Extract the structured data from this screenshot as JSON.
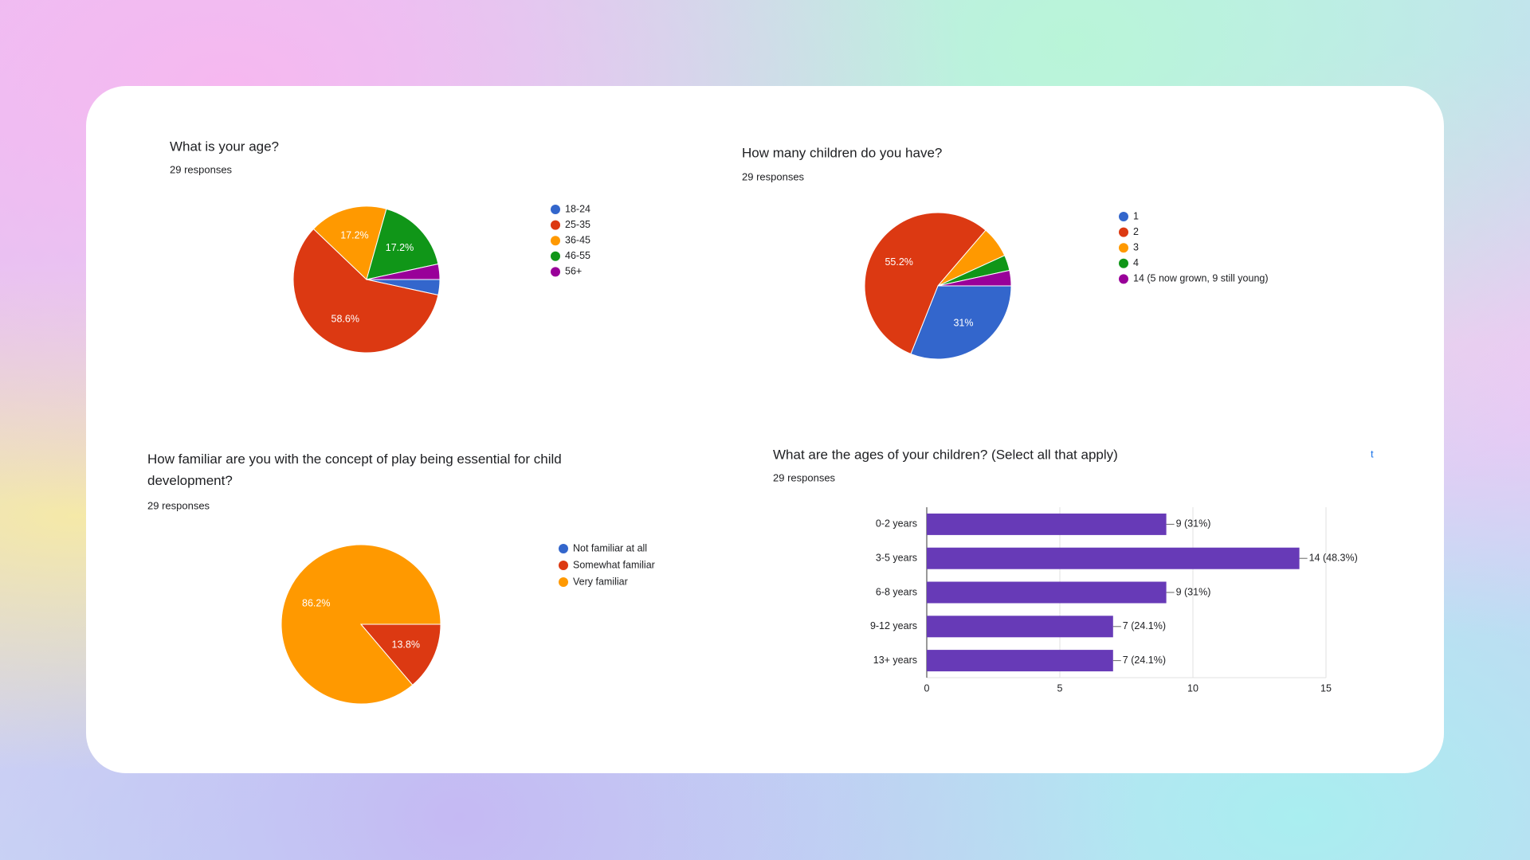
{
  "chart_data": [
    {
      "type": "pie",
      "title": "What is your age?",
      "subtitle": "29 responses",
      "categories": [
        "18-24",
        "25-35",
        "36-45",
        "46-55",
        "56+"
      ],
      "values": [
        3.4,
        58.6,
        17.2,
        17.2,
        3.4
      ],
      "value_labels": [
        null,
        "58.6%",
        "17.2%",
        "17.2%",
        null
      ],
      "colors": [
        "#3366cc",
        "#dc3912",
        "#ff9900",
        "#109618",
        "#990099"
      ]
    },
    {
      "type": "pie",
      "title": "How many children do you have?",
      "subtitle": "29 responses",
      "categories": [
        "1",
        "2",
        "3",
        "4",
        "14 (5 now grown, 9 still young)"
      ],
      "values": [
        31,
        55.2,
        6.9,
        3.4,
        3.4
      ],
      "value_labels": [
        "31%",
        "55.2%",
        null,
        null,
        null
      ],
      "colors": [
        "#3366cc",
        "#dc3912",
        "#ff9900",
        "#109618",
        "#990099"
      ]
    },
    {
      "type": "pie",
      "title": "How familiar are you with the concept of play being essential for child development?",
      "subtitle": "29 responses",
      "categories": [
        "Not familiar at all",
        "Somewhat familiar",
        "Very familiar"
      ],
      "values": [
        0,
        13.8,
        86.2
      ],
      "value_labels": [
        null,
        "13.8%",
        "86.2%"
      ],
      "colors": [
        "#3366cc",
        "#dc3912",
        "#ff9900"
      ]
    },
    {
      "type": "bar",
      "title": "What are the ages of your children? (Select all that apply)",
      "subtitle": "29 responses",
      "annotation": "t",
      "categories": [
        "0-2 years",
        "3-5 years",
        "6-8 years",
        "9-12 years",
        "13+ years"
      ],
      "values": [
        9,
        14,
        9,
        7,
        7
      ],
      "value_labels": [
        "9 (31%)",
        "14 (48.3%)",
        "9 (31%)",
        "7 (24.1%)",
        "7 (24.1%)"
      ],
      "color": "#673ab7",
      "xlim": [
        0,
        15
      ],
      "xticks": [
        0,
        5,
        10,
        15
      ],
      "grid": true
    }
  ]
}
